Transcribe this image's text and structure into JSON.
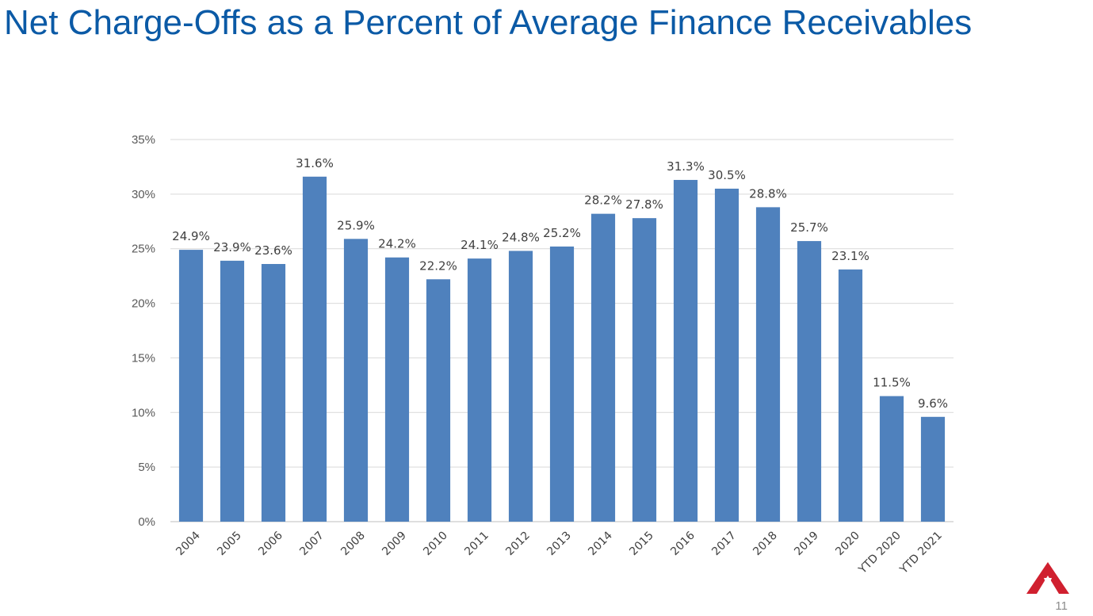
{
  "page": {
    "title": "Net Charge-Offs as a Percent of Average Finance Receivables",
    "page_number": "11",
    "accent_color": "#0b5aa6",
    "logo_color": "#d0202f",
    "logo_icon": "brand-logo-icon"
  },
  "chart_data": {
    "type": "bar",
    "title": "",
    "xlabel": "",
    "ylabel": "",
    "categories": [
      "2004",
      "2005",
      "2006",
      "2007",
      "2008",
      "2009",
      "2010",
      "2011",
      "2012",
      "2013",
      "2014",
      "2015",
      "2016",
      "2017",
      "2018",
      "2019",
      "2020",
      "YTD 2020",
      "YTD 2021"
    ],
    "values": [
      24.9,
      23.9,
      23.6,
      31.6,
      25.9,
      24.2,
      22.2,
      24.1,
      24.8,
      25.2,
      28.2,
      27.8,
      31.3,
      30.5,
      28.8,
      25.7,
      23.1,
      11.5,
      9.6
    ],
    "value_labels": [
      "24.9%",
      "23.9%",
      "23.6%",
      "31.6%",
      "25.9%",
      "24.2%",
      "22.2%",
      "24.1%",
      "24.8%",
      "25.2%",
      "28.2%",
      "27.8%",
      "31.3%",
      "30.5%",
      "28.8%",
      "25.7%",
      "23.1%",
      "11.5%",
      "9.6%"
    ],
    "ylim": [
      0,
      35
    ],
    "yticks": [
      0,
      5,
      10,
      15,
      20,
      25,
      30,
      35
    ],
    "ytick_labels": [
      "0%",
      "5%",
      "10%",
      "15%",
      "20%",
      "25%",
      "30%",
      "35%"
    ],
    "grid": true,
    "legend": "none",
    "bar_color": "#4f81bd",
    "grid_color": "#d9d9d9"
  }
}
